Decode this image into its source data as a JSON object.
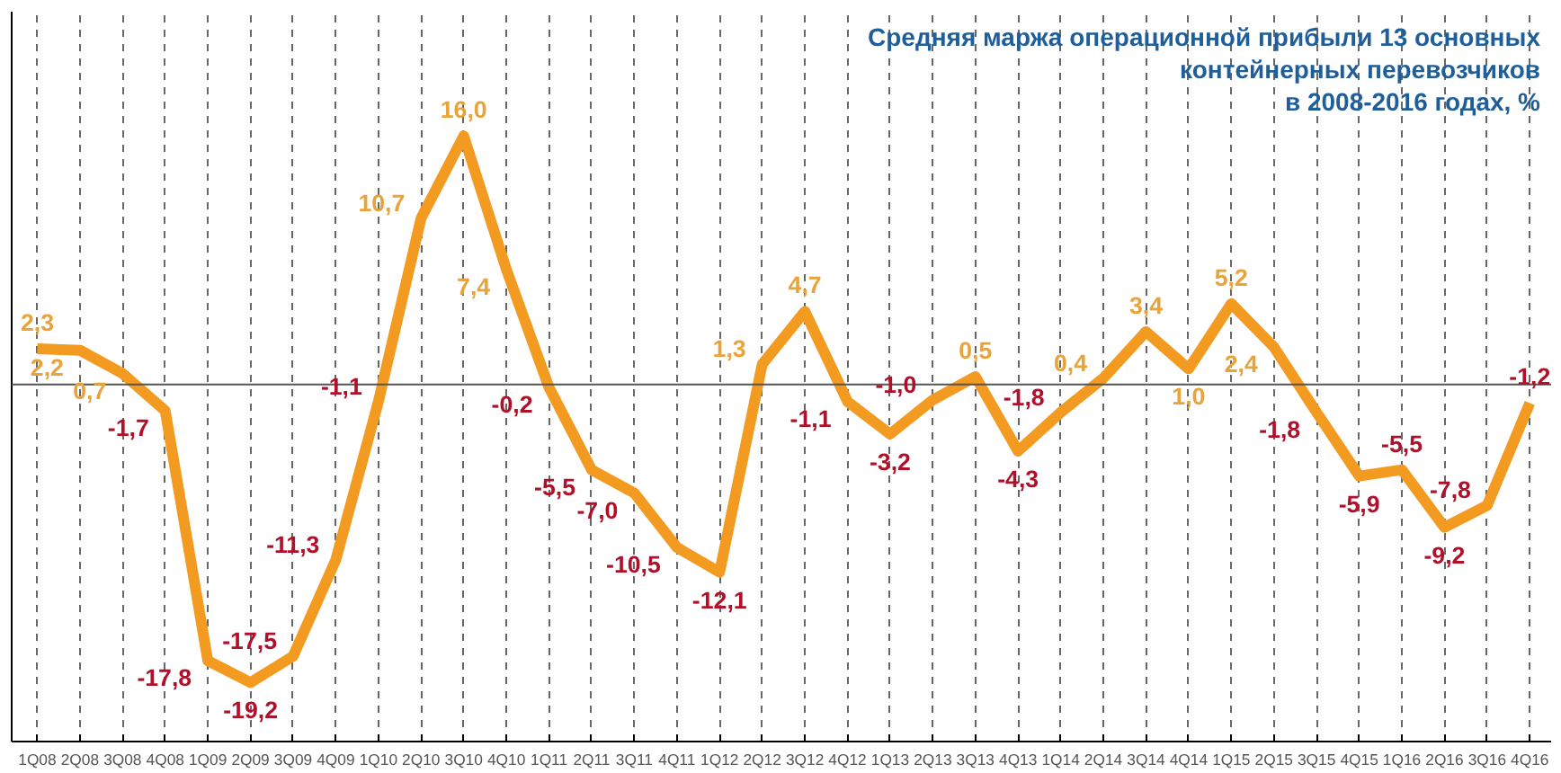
{
  "chart_data": {
    "type": "line",
    "title": "Средняя маржа операционной прибыли 13 основных\nконтейнерных перевозчиков\nв 2008-2016 годах, %",
    "categories": [
      "1Q08",
      "2Q08",
      "3Q08",
      "4Q08",
      "1Q09",
      "2Q09",
      "3Q09",
      "4Q09",
      "1Q10",
      "2Q10",
      "3Q10",
      "4Q10",
      "1Q11",
      "2Q11",
      "3Q11",
      "4Q11",
      "1Q12",
      "2Q12",
      "3Q12",
      "4Q12",
      "1Q13",
      "2Q13",
      "3Q13",
      "4Q13",
      "1Q14",
      "2Q14",
      "3Q14",
      "4Q14",
      "1Q15",
      "2Q15",
      "3Q15",
      "4Q15",
      "1Q16",
      "2Q16",
      "3Q16",
      "4Q16"
    ],
    "series": [
      {
        "color": "#f39a21",
        "values": [
          2.3,
          2.2,
          0.7,
          -1.7,
          -17.8,
          -19.2,
          -17.5,
          -11.3,
          -1.1,
          10.7,
          16.0,
          7.4,
          -0.2,
          -5.5,
          -7.0,
          -10.5,
          -12.1,
          1.3,
          4.7,
          -1.1,
          -3.2,
          -1.0,
          0.5,
          -4.3,
          -1.8,
          0.4,
          3.4,
          1.0,
          5.2,
          2.4,
          -1.8,
          -5.9,
          -5.5,
          -9.2,
          -7.8,
          -1.2
        ],
        "value_labels": [
          "2,3",
          "2,2",
          "0,7",
          "-1,7",
          "-17,8",
          "-19,2",
          "-17,5",
          "-11,3",
          "-1,1",
          "10,7",
          "16,0",
          "7,4",
          "-0,2",
          "-5,5",
          "-7,0",
          "-10,5",
          "-12,1",
          "1,3",
          "4,7",
          "-1,1",
          "-3,2",
          "-1,0",
          "0,5",
          "-4,3",
          "-1,8",
          "0,4",
          "3,4",
          "1,0",
          "5,2",
          "2,4",
          "-1,8",
          "-5,9",
          "-5,5",
          "-9,2",
          "-7,8",
          "-1,2"
        ]
      }
    ],
    "ylim": [
      -23,
      24
    ],
    "tick_labels": "x",
    "grid": "x",
    "marker": "none",
    "line_style": "solid",
    "ref_lines": [
      {
        "axis": "y",
        "value": 0,
        "color": "#555555"
      }
    ]
  }
}
